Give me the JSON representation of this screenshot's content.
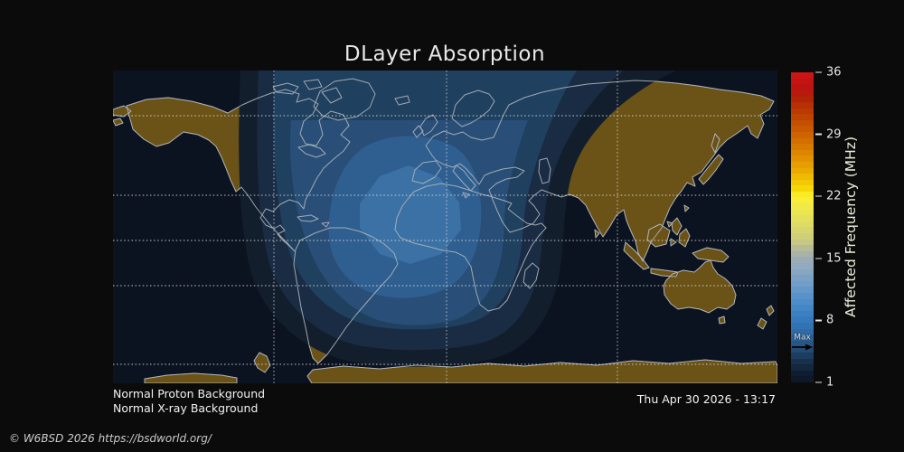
{
  "title": "DLayer Absorption",
  "status": {
    "line1": "Normal Proton Background",
    "line2": "Normal X-ray Background"
  },
  "timestamp": "Thu Apr 30 2026 - 13:17",
  "copyright": "© W6BSD 2026 https://bsdworld.org/",
  "colorbar": {
    "label": "Affected Frequency (MHz)",
    "ticks": [
      36,
      29,
      22,
      15,
      8,
      1
    ],
    "min": 1,
    "max": 36,
    "max_marker": {
      "label": "Max",
      "value": 5.5
    },
    "stops": [
      [
        1,
        "#0c1626"
      ],
      [
        2,
        "#101d31"
      ],
      [
        3,
        "#152b43"
      ],
      [
        4,
        "#1c3c5c"
      ],
      [
        5,
        "#24507b"
      ],
      [
        6,
        "#2c6095"
      ],
      [
        7,
        "#316fae"
      ],
      [
        8,
        "#3579bd"
      ],
      [
        9,
        "#3f83c6"
      ],
      [
        10,
        "#4c8cc9"
      ],
      [
        12,
        "#6f9dc9"
      ],
      [
        14,
        "#8fa9c0"
      ],
      [
        15,
        "#9fadb4"
      ],
      [
        16,
        "#b3b89c"
      ],
      [
        17,
        "#cbcb80"
      ],
      [
        19,
        "#e0dd62"
      ],
      [
        21,
        "#f2ea45"
      ],
      [
        22,
        "#fdf02c"
      ],
      [
        23,
        "#f5d504"
      ],
      [
        25,
        "#eaa800"
      ],
      [
        27,
        "#dd8400"
      ],
      [
        29,
        "#cc6300"
      ],
      [
        31,
        "#bf4300"
      ],
      [
        33,
        "#b22408"
      ],
      [
        34,
        "#bb1410"
      ],
      [
        36,
        "#cd1515"
      ]
    ]
  },
  "map": {
    "gridlines": {
      "h": [
        128,
        216,
        266,
        316,
        403
      ],
      "v": [
        303,
        494,
        683
      ]
    },
    "contour_colors": [
      "#131e2d",
      "#1a2c43",
      "#20405f",
      "#294f78",
      "#2f5f90",
      "#3b71a4"
    ]
  },
  "theme": {
    "bg": "#0b0b0c",
    "ocean": "#0c1320",
    "land": "#6b5317",
    "coast": "#aeb4ba",
    "grid": "#dfe5ea",
    "tick": "#e6e6e6",
    "title_color": "#e8e8e8",
    "text": "#f2f2f2",
    "muted": "#cccccc",
    "axis_label_color": "#e9efd9"
  },
  "chart_data": {
    "type": "heatmap",
    "title": "DLayer Absorption",
    "colorbar_label": "Affected Frequency (MHz)",
    "colorbar_ticks": [
      1,
      8,
      15,
      22,
      29,
      36
    ],
    "colorbar_range": [
      1,
      36
    ],
    "max_marker_mhz": 5.5,
    "legend_position": "right",
    "grid": true,
    "status_annotations": [
      "Normal Proton Background",
      "Normal X-ray Background"
    ],
    "timestamp": "Thu Apr 30 2026 - 13:17",
    "description": "World map with concentric D-layer absorption contours centered over West Africa / eastern Atlantic (daylit hemisphere); night side shows brown continents on dark ocean."
  }
}
